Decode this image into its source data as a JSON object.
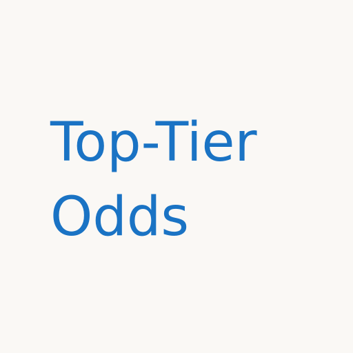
{
  "logo": {
    "line1": "Top-Tier",
    "line2": "Odds",
    "text_color": "#1a73c4",
    "background_color": "#faf8f5"
  }
}
